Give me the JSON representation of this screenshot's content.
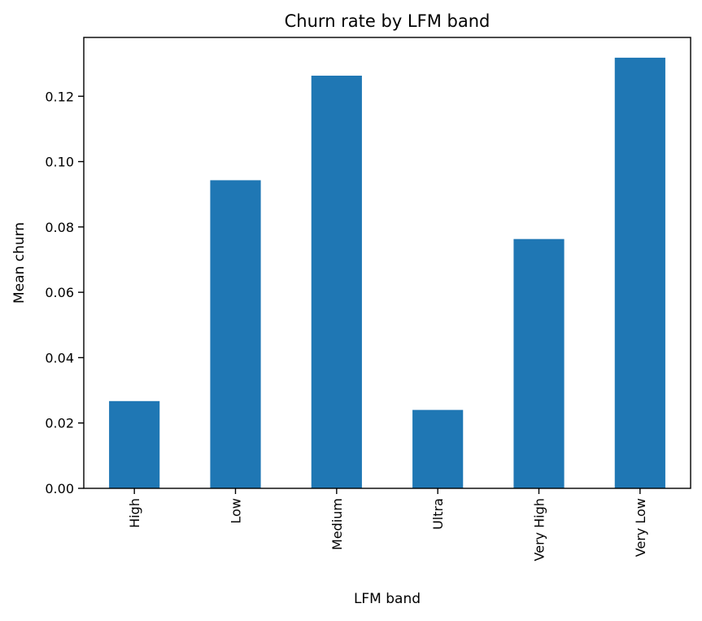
{
  "chart_data": {
    "type": "bar",
    "title": "Churn rate by LFM band",
    "xlabel": "LFM band",
    "ylabel": "Mean churn",
    "categories": [
      "High",
      "Low",
      "Medium",
      "Ultra",
      "Very High",
      "Very Low"
    ],
    "values": [
      0.0267,
      0.0943,
      0.1263,
      0.024,
      0.0763,
      0.1318
    ],
    "ylim": [
      0,
      0.138
    ],
    "yticks": [
      0.0,
      0.02,
      0.04,
      0.06,
      0.08,
      0.1,
      0.12
    ],
    "ytick_labels": [
      "0.00",
      "0.02",
      "0.04",
      "0.06",
      "0.08",
      "0.10",
      "0.12"
    ],
    "grid": false,
    "legend": "none",
    "bar_color": "#1f77b4"
  }
}
